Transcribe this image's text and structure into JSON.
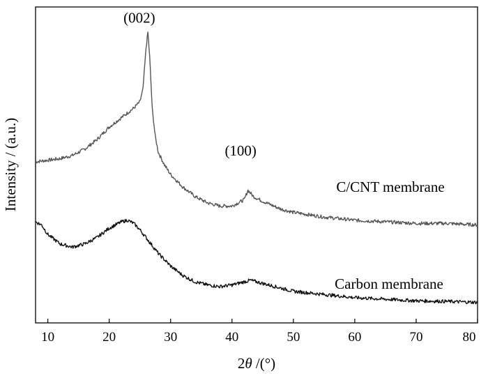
{
  "chart_data": {
    "type": "line",
    "xlabel": "2θ /(°)",
    "ylabel": "Intensity / (a.u.)",
    "xlim": [
      8,
      80
    ],
    "x_ticks": [
      10,
      20,
      30,
      40,
      50,
      60,
      70,
      80
    ],
    "y_ticks_shown": false,
    "grid": false,
    "annotations": [
      {
        "text": "(002)",
        "x": 26.5,
        "y": 95
      },
      {
        "text": "(100)",
        "x": 43,
        "y": 53
      }
    ],
    "series": [
      {
        "name": "C/CNT membrane",
        "color": "#555555",
        "x": [
          8,
          10,
          12,
          14,
          16,
          18,
          20,
          22,
          24,
          25,
          25.5,
          26,
          26.3,
          26.6,
          27,
          27.5,
          28,
          29,
          30,
          32,
          34,
          36,
          38,
          40,
          42,
          42.6,
          43.5,
          45,
          48,
          50,
          55,
          60,
          65,
          70,
          75,
          80
        ],
        "y": [
          51,
          51.5,
          52,
          53,
          55,
          58,
          62,
          65,
          68,
          70,
          74,
          87,
          92,
          84,
          68,
          59,
          54,
          50,
          47,
          43,
          40,
          38,
          37,
          37,
          39,
          42,
          40,
          38.5,
          36,
          35,
          33.5,
          32.5,
          32,
          31.5,
          31.5,
          31
        ]
      },
      {
        "name": "Carbon membrane",
        "color": "#111111",
        "x": [
          8,
          9,
          10,
          12,
          14,
          16,
          18,
          20,
          22,
          23,
          24,
          25,
          26,
          28,
          30,
          32,
          34,
          36,
          38,
          40,
          42,
          43,
          44,
          46,
          48,
          50,
          55,
          60,
          65,
          70,
          75,
          80
        ],
        "y": [
          32,
          31,
          28,
          25,
          24,
          25,
          27,
          30,
          32,
          32.5,
          31.5,
          29.5,
          27,
          22,
          18,
          15,
          13,
          12,
          11.5,
          12,
          13,
          13.5,
          13,
          12,
          11,
          10,
          9,
          8,
          7.5,
          7,
          6.8,
          6.5
        ]
      }
    ],
    "series_labels": [
      {
        "text": "C/CNT membrane",
        "series": 0
      },
      {
        "text": "Carbon membrane",
        "series": 1
      }
    ]
  }
}
